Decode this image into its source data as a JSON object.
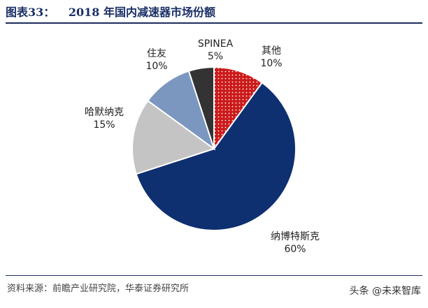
{
  "header": {
    "label": "图表33：",
    "title": "2018 年国内减速器市场份额"
  },
  "chart_data": {
    "type": "pie",
    "title": "2018 年国内减速器市场份额",
    "slices": [
      {
        "name": "SPINEA",
        "value": 5,
        "value_label": "5%",
        "color": "#333333",
        "pattern": "solid"
      },
      {
        "name": "其他",
        "value": 10,
        "value_label": "10%",
        "color": "#cc1a1a",
        "pattern": "dots"
      },
      {
        "name": "纳博特斯克",
        "value": 60,
        "value_label": "60%",
        "color": "#0e2f70",
        "pattern": "solid"
      },
      {
        "name": "哈默纳克",
        "value": 15,
        "value_label": "15%",
        "color": "#c4c4c4",
        "pattern": "solid"
      },
      {
        "name": "住友",
        "value": 10,
        "value_label": "10%",
        "color": "#7b97c0",
        "pattern": "solid"
      }
    ]
  },
  "footer": {
    "source": "资料来源：前瞻产业研究院，华泰证券研究所",
    "watermark": "头条 @未来智库"
  }
}
